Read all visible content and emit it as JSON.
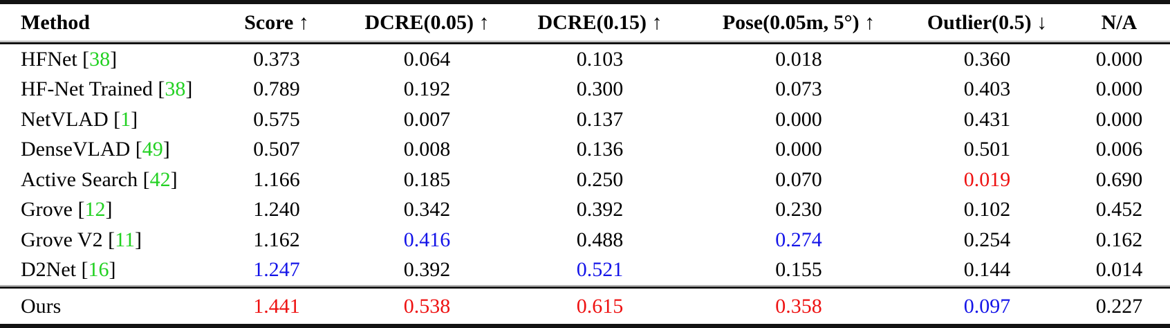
{
  "palette": {
    "black": "#000000",
    "red": "#ee1111",
    "blue": "#1414e8",
    "citation_green": "#22d122"
  },
  "table": {
    "columns": [
      {
        "key": "method",
        "label": "Method"
      },
      {
        "key": "score",
        "label": "Score ↑"
      },
      {
        "key": "dcre-005",
        "label": "DCRE(0.05) ↑"
      },
      {
        "key": "dcre-015",
        "label": "DCRE(0.15) ↑"
      },
      {
        "key": "pose",
        "label": "Pose(0.05m, 5°) ↑"
      },
      {
        "key": "outlier",
        "label": "Outlier(0.5) ↓"
      },
      {
        "key": "na",
        "label": "N/A"
      }
    ],
    "rows": [
      {
        "method": "HFNet",
        "citation": "38",
        "values": [
          {
            "text": "0.373",
            "color": "black"
          },
          {
            "text": "0.064",
            "color": "black"
          },
          {
            "text": "0.103",
            "color": "black"
          },
          {
            "text": "0.018",
            "color": "black"
          },
          {
            "text": "0.360",
            "color": "black"
          },
          {
            "text": "0.000",
            "color": "black"
          }
        ]
      },
      {
        "method": "HF-Net Trained",
        "citation": "38",
        "values": [
          {
            "text": "0.789",
            "color": "black"
          },
          {
            "text": "0.192",
            "color": "black"
          },
          {
            "text": "0.300",
            "color": "black"
          },
          {
            "text": "0.073",
            "color": "black"
          },
          {
            "text": "0.403",
            "color": "black"
          },
          {
            "text": "0.000",
            "color": "black"
          }
        ]
      },
      {
        "method": "NetVLAD",
        "citation": "1",
        "values": [
          {
            "text": "0.575",
            "color": "black"
          },
          {
            "text": "0.007",
            "color": "black"
          },
          {
            "text": "0.137",
            "color": "black"
          },
          {
            "text": "0.000",
            "color": "black"
          },
          {
            "text": "0.431",
            "color": "black"
          },
          {
            "text": "0.000",
            "color": "black"
          }
        ]
      },
      {
        "method": "DenseVLAD",
        "citation": "49",
        "values": [
          {
            "text": "0.507",
            "color": "black"
          },
          {
            "text": "0.008",
            "color": "black"
          },
          {
            "text": "0.136",
            "color": "black"
          },
          {
            "text": "0.000",
            "color": "black"
          },
          {
            "text": "0.501",
            "color": "black"
          },
          {
            "text": "0.006",
            "color": "black"
          }
        ]
      },
      {
        "method": "Active Search",
        "citation": "42",
        "values": [
          {
            "text": "1.166",
            "color": "black"
          },
          {
            "text": "0.185",
            "color": "black"
          },
          {
            "text": "0.250",
            "color": "black"
          },
          {
            "text": "0.070",
            "color": "black"
          },
          {
            "text": "0.019",
            "color": "red"
          },
          {
            "text": "0.690",
            "color": "black"
          }
        ]
      },
      {
        "method": "Grove",
        "citation": "12",
        "values": [
          {
            "text": "1.240",
            "color": "black"
          },
          {
            "text": "0.342",
            "color": "black"
          },
          {
            "text": "0.392",
            "color": "black"
          },
          {
            "text": "0.230",
            "color": "black"
          },
          {
            "text": "0.102",
            "color": "black"
          },
          {
            "text": "0.452",
            "color": "black"
          }
        ]
      },
      {
        "method": "Grove V2",
        "citation": "11",
        "values": [
          {
            "text": "1.162",
            "color": "black"
          },
          {
            "text": "0.416",
            "color": "blue"
          },
          {
            "text": "0.488",
            "color": "black"
          },
          {
            "text": "0.274",
            "color": "blue"
          },
          {
            "text": "0.254",
            "color": "black"
          },
          {
            "text": "0.162",
            "color": "black"
          }
        ]
      },
      {
        "method": "D2Net",
        "citation": "16",
        "values": [
          {
            "text": "1.247",
            "color": "blue"
          },
          {
            "text": "0.392",
            "color": "black"
          },
          {
            "text": "0.521",
            "color": "blue"
          },
          {
            "text": "0.155",
            "color": "black"
          },
          {
            "text": "0.144",
            "color": "black"
          },
          {
            "text": "0.014",
            "color": "black"
          }
        ]
      }
    ],
    "footer": {
      "method": "Ours",
      "citation": null,
      "values": [
        {
          "text": "1.441",
          "color": "red"
        },
        {
          "text": "0.538",
          "color": "red"
        },
        {
          "text": "0.615",
          "color": "red"
        },
        {
          "text": "0.358",
          "color": "red"
        },
        {
          "text": "0.097",
          "color": "blue"
        },
        {
          "text": "0.227",
          "color": "black"
        }
      ]
    }
  }
}
